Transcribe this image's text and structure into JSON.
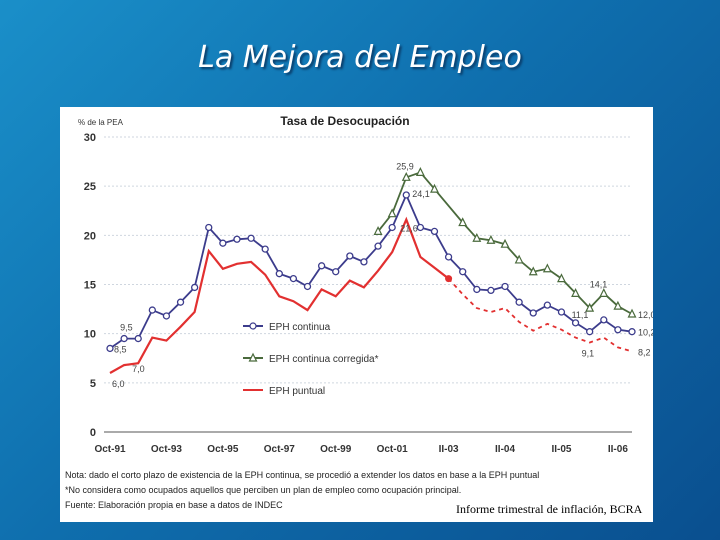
{
  "slide": {
    "title": "La Mejora del Empleo",
    "source_caption": "Informe trimestral de inflación, BCRA"
  },
  "chart_data": {
    "type": "line",
    "title": "Tasa de Desocupación",
    "ylabel": "% de la PEA",
    "ylim": [
      0,
      30
    ],
    "yticks": [
      "0",
      "5",
      "10",
      "15",
      "20",
      "25",
      "30"
    ],
    "xticks": [
      "Oct-91",
      "Oct-93",
      "Oct-95",
      "Oct-97",
      "Oct-99",
      "Oct-01",
      "II-03",
      "II-04",
      "II-05",
      "II-06"
    ],
    "series": [
      {
        "name": "EPH continua",
        "color": "#3c3c8c",
        "marker": "circle",
        "values": [
          [
            0,
            8.5
          ],
          [
            1,
            9.5
          ],
          [
            2,
            9.5
          ],
          [
            3,
            12.4
          ],
          [
            4,
            11.8
          ],
          [
            5,
            13.2
          ],
          [
            6,
            14.7
          ],
          [
            7,
            20.8
          ],
          [
            8,
            19.2
          ],
          [
            9,
            19.6
          ],
          [
            10,
            19.7
          ],
          [
            11,
            18.6
          ],
          [
            12,
            16.1
          ],
          [
            13,
            15.6
          ],
          [
            14,
            14.8
          ],
          [
            15,
            16.9
          ],
          [
            16,
            16.3
          ],
          [
            17,
            17.9
          ],
          [
            18,
            17.3
          ],
          [
            19,
            18.9
          ],
          [
            20,
            20.8
          ],
          [
            21,
            24.1
          ],
          [
            22,
            20.8
          ],
          [
            23,
            20.4
          ],
          [
            24,
            17.8
          ],
          [
            25,
            16.3
          ],
          [
            26,
            14.5
          ],
          [
            27,
            14.4
          ],
          [
            28,
            14.8
          ],
          [
            29,
            13.2
          ],
          [
            30,
            12.1
          ],
          [
            31,
            12.9
          ],
          [
            32,
            12.2
          ],
          [
            33,
            11.1
          ],
          [
            34,
            10.2
          ],
          [
            35,
            11.4
          ],
          [
            36,
            10.4
          ],
          [
            37,
            10.2
          ]
        ]
      },
      {
        "name": "EPH continua corregida*",
        "color": "#4a6a3c",
        "marker": "triangle",
        "values": [
          [
            19,
            20.4
          ],
          [
            20,
            22.2
          ],
          [
            21,
            25.9
          ],
          [
            22,
            26.4
          ],
          [
            23,
            24.7
          ],
          [
            25,
            21.3
          ],
          [
            26,
            19.7
          ],
          [
            27,
            19.5
          ],
          [
            28,
            19.1
          ],
          [
            29,
            17.5
          ],
          [
            30,
            16.3
          ],
          [
            31,
            16.6
          ],
          [
            32,
            15.6
          ],
          [
            33,
            14.1
          ],
          [
            34,
            12.6
          ],
          [
            35,
            14.1
          ],
          [
            36,
            12.8
          ],
          [
            37,
            12.0
          ]
        ]
      },
      {
        "name": "EPH puntual",
        "color": "#e23030",
        "marker": "none",
        "values": [
          [
            0,
            6.0
          ],
          [
            1,
            6.8
          ],
          [
            2,
            7.0
          ],
          [
            3,
            9.6
          ],
          [
            4,
            9.3
          ],
          [
            5,
            10.7
          ],
          [
            6,
            12.2
          ],
          [
            7,
            18.4
          ],
          [
            8,
            16.6
          ],
          [
            9,
            17.1
          ],
          [
            10,
            17.3
          ],
          [
            11,
            16.0
          ],
          [
            12,
            13.8
          ],
          [
            13,
            13.3
          ],
          [
            14,
            12.4
          ],
          [
            15,
            14.5
          ],
          [
            16,
            13.8
          ],
          [
            17,
            15.4
          ],
          [
            18,
            14.7
          ],
          [
            19,
            16.4
          ],
          [
            20,
            18.3
          ],
          [
            21,
            21.6
          ],
          [
            22,
            17.8
          ],
          [
            23,
            16.7
          ],
          [
            24,
            15.6
          ]
        ],
        "extension": [
          [
            24,
            15.6
          ],
          [
            25,
            14.0
          ],
          [
            26,
            12.6
          ],
          [
            27,
            12.2
          ],
          [
            28,
            12.6
          ],
          [
            29,
            11.2
          ],
          [
            30,
            10.3
          ],
          [
            31,
            11.0
          ],
          [
            32,
            10.4
          ],
          [
            33,
            9.6
          ],
          [
            34,
            9.1
          ],
          [
            35,
            9.6
          ],
          [
            36,
            8.6
          ],
          [
            37,
            8.2
          ]
        ]
      }
    ],
    "annotations": [
      "8,5",
      "9,5",
      "6,0",
      "7,0",
      "25,9",
      "24,1",
      "21,6",
      "14,1",
      "11,1",
      "12,0",
      "10,2",
      "9,1",
      "8,2"
    ],
    "notes": [
      "Nota: dado el corto plazo de existencia de la EPH continua, se procedió a extender los datos en base a la EPH puntual",
      "*No considera como ocupados aquellos que perciben un plan de empleo como ocupación principal.",
      "Fuente: Elaboración propia en base a datos de INDEC"
    ]
  }
}
